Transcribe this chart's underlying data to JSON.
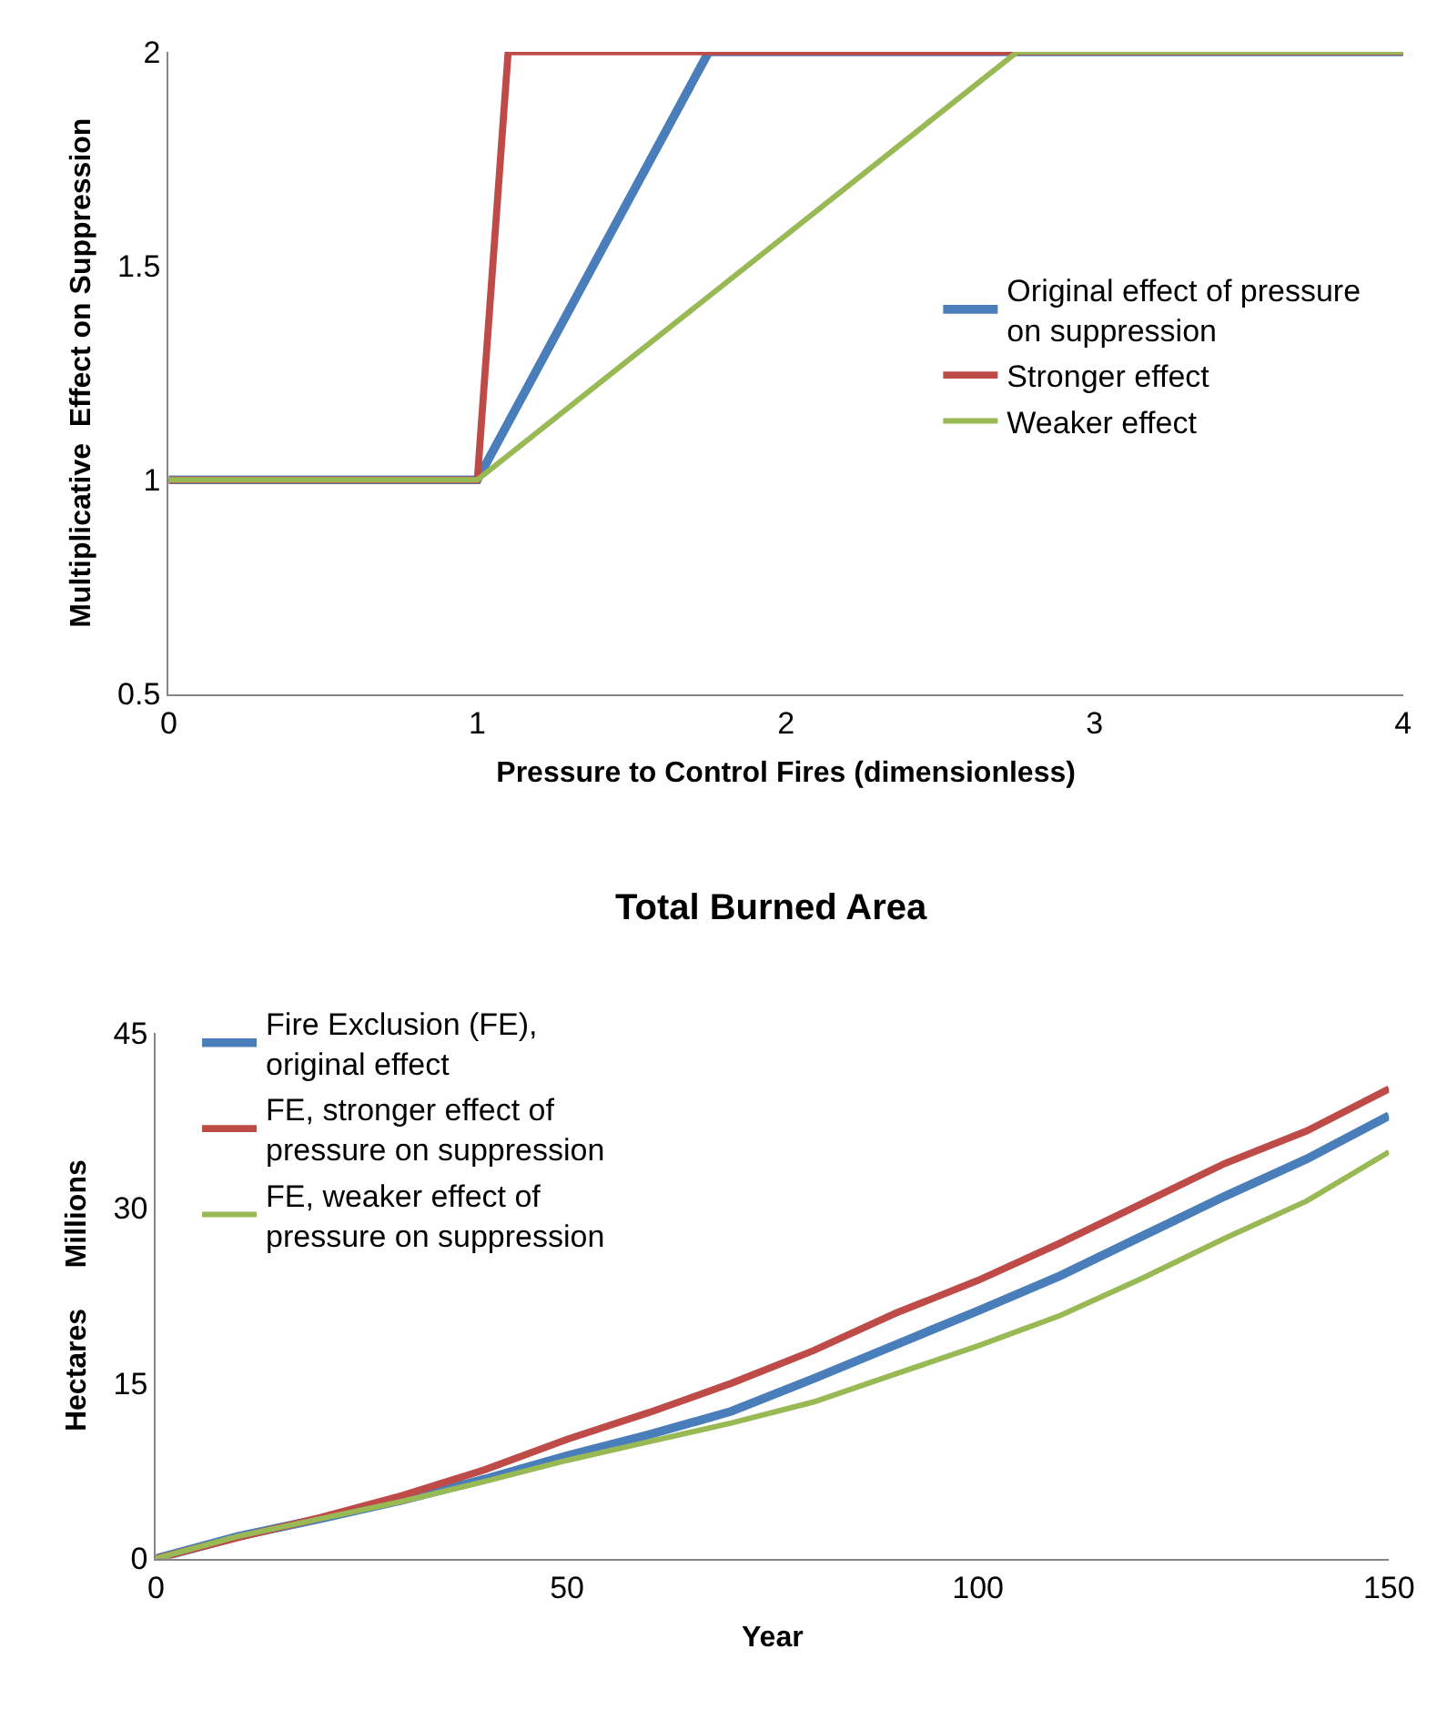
{
  "chart_data": [
    {
      "type": "line",
      "xlabel": "Pressure to Control Fires (dimensionless)",
      "ylabel": "Multiplicative  Effect on Suppression",
      "xlim": [
        0,
        4
      ],
      "ylim": [
        0.5,
        2
      ],
      "xticks": [
        0,
        1,
        2,
        3,
        4
      ],
      "yticks": [
        0.5,
        1,
        1.5,
        2
      ],
      "grid": false,
      "legend": "right",
      "marker": "none",
      "line_style": "solid",
      "series": [
        {
          "name": "Original effect of pressure on suppression",
          "color": "#4a7ebb",
          "x": [
            0,
            1,
            1.75,
            4
          ],
          "values": [
            1,
            1,
            2,
            2
          ]
        },
        {
          "name": "Stronger effect",
          "color": "#be4b48",
          "x": [
            0,
            1,
            1.1,
            4
          ],
          "values": [
            1,
            1,
            2,
            2
          ]
        },
        {
          "name": "Weaker effect",
          "color": "#98b954",
          "x": [
            0,
            1,
            2.75,
            4
          ],
          "values": [
            1,
            1,
            2,
            2
          ]
        }
      ]
    },
    {
      "type": "line",
      "title": "Total Burned Area",
      "xlabel": "Year",
      "ylabel": "Hectares     Millions",
      "xlim": [
        0,
        150
      ],
      "ylim": [
        0,
        45
      ],
      "xticks": [
        0,
        50,
        100,
        150
      ],
      "yticks": [
        0,
        15,
        30,
        45
      ],
      "grid": false,
      "legend": "top left",
      "marker": "none",
      "line_style": "solid",
      "x": [
        0,
        10,
        20,
        30,
        40,
        50,
        60,
        70,
        80,
        90,
        100,
        110,
        120,
        130,
        140,
        150
      ],
      "series": [
        {
          "name": "Fire Exclusion (FE), original effect",
          "color": "#4a7ebb",
          "values": [
            0,
            1.9,
            3.4,
            5.0,
            6.8,
            8.8,
            10.6,
            12.6,
            15.4,
            18.3,
            21.2,
            24.2,
            27.6,
            31.0,
            34.2,
            37.9
          ]
        },
        {
          "name": "FE, stronger effect of pressure on suppression",
          "color": "#be4b48",
          "values": [
            0,
            1.8,
            3.5,
            5.4,
            7.6,
            10.2,
            12.5,
            15.0,
            17.8,
            21.0,
            23.8,
            27.0,
            30.4,
            33.8,
            36.6,
            40.2
          ]
        },
        {
          "name": "FE, weaker effect of pressure on suppression",
          "color": "#98b954",
          "values": [
            0,
            1.9,
            3.4,
            4.9,
            6.6,
            8.4,
            10.0,
            11.6,
            13.4,
            15.8,
            18.2,
            20.8,
            24.0,
            27.4,
            30.6,
            34.8
          ]
        }
      ]
    }
  ]
}
